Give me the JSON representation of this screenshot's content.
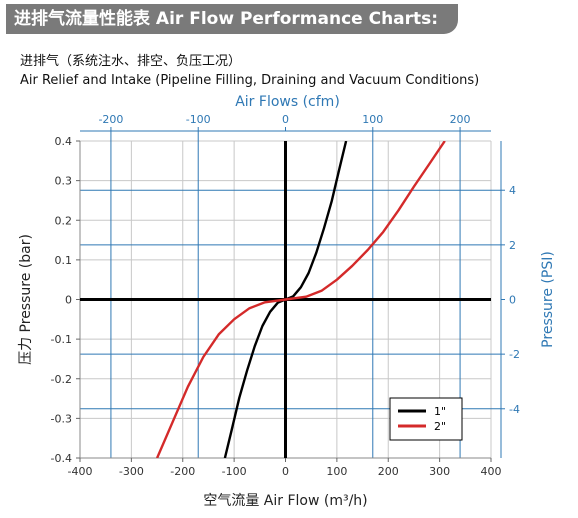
{
  "header": {
    "title": "进排气流量性能表  Air Flow Performance Charts:",
    "subtitle_cn": "进排气（系统注水、排空、负压工况）",
    "subtitle_en": "Air Relief and Intake (Pipeline Filling, Draining and Vacuum Conditions)"
  },
  "chart_data": {
    "type": "line",
    "top_axis_label": "Air Flows (cfm)",
    "xlabel": "空气流量 Air Flow (m³/h)",
    "ylabel": "压力 Pressure (bar)",
    "right_axis_label": "Pressure (PSI)",
    "xlim": [
      -400,
      400
    ],
    "ylim": [
      -0.4,
      0.4
    ],
    "x_ticks": [
      "-400",
      "-300",
      "-200",
      "-100",
      "0",
      "100",
      "200",
      "300",
      "400"
    ],
    "y_ticks": [
      "0.4",
      "0.3",
      "0.2",
      "0.1",
      "0",
      "-0.1",
      "-0.2",
      "-0.3",
      "-0.4"
    ],
    "top_ticks": [
      "-200",
      "-100",
      "0",
      "100",
      "200"
    ],
    "top_tick_values_cfm": [
      -200,
      -100,
      0,
      100,
      200
    ],
    "right_ticks": [
      "4",
      "2",
      "0",
      "-2",
      "-4"
    ],
    "right_tick_values_psi": [
      4,
      2,
      0,
      -2,
      -4
    ],
    "grid": true,
    "legend_position": "bottom-right",
    "series": [
      {
        "name": "1\"",
        "color": "#000000",
        "x": [
          -118,
          -105,
          -90,
          -75,
          -60,
          -45,
          -30,
          -15,
          0,
          15,
          30,
          45,
          60,
          75,
          90,
          105,
          118
        ],
        "y": [
          -0.4,
          -0.33,
          -0.248,
          -0.18,
          -0.118,
          -0.067,
          -0.031,
          -0.008,
          0,
          0.008,
          0.031,
          0.067,
          0.118,
          0.18,
          0.248,
          0.33,
          0.4
        ]
      },
      {
        "name": "2\"",
        "color": "#d42a2a",
        "x": [
          -250,
          -220,
          -190,
          -160,
          -130,
          -100,
          -70,
          -40,
          0,
          40,
          70,
          100,
          130,
          160,
          190,
          220,
          250,
          280,
          310
        ],
        "y": [
          -0.4,
          -0.31,
          -0.22,
          -0.145,
          -0.088,
          -0.05,
          -0.022,
          -0.007,
          0,
          0.007,
          0.022,
          0.05,
          0.085,
          0.125,
          0.17,
          0.225,
          0.285,
          0.342,
          0.4
        ]
      }
    ]
  }
}
